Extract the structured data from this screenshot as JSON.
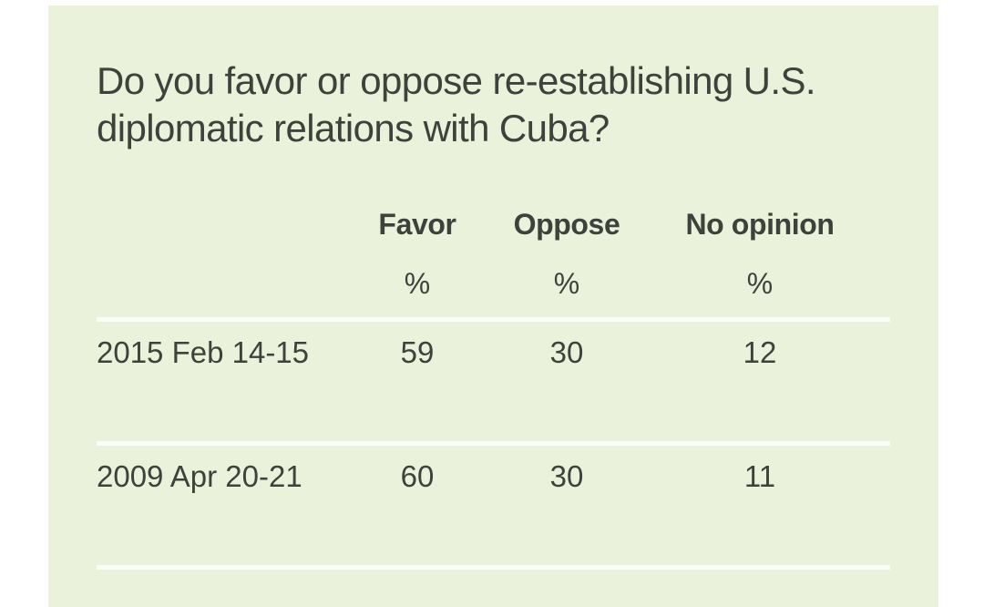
{
  "question": "Do you favor or oppose re-establishing U.S. diplomatic relations with Cuba?",
  "colors": {
    "panel_background": "#eaf2dc",
    "text": "#3e423b",
    "rule": "#fbfdf7"
  },
  "table": {
    "columns": [
      {
        "label": "Favor",
        "unit": "%"
      },
      {
        "label": "Oppose",
        "unit": "%"
      },
      {
        "label": "No opinion",
        "unit": "%"
      }
    ],
    "rows": [
      {
        "date": "2015 Feb 14-15",
        "favor": "59",
        "oppose": "30",
        "no_opinion": "12"
      },
      {
        "date": "2009 Apr 20-21",
        "favor": "60",
        "oppose": "30",
        "no_opinion": "11"
      }
    ]
  }
}
